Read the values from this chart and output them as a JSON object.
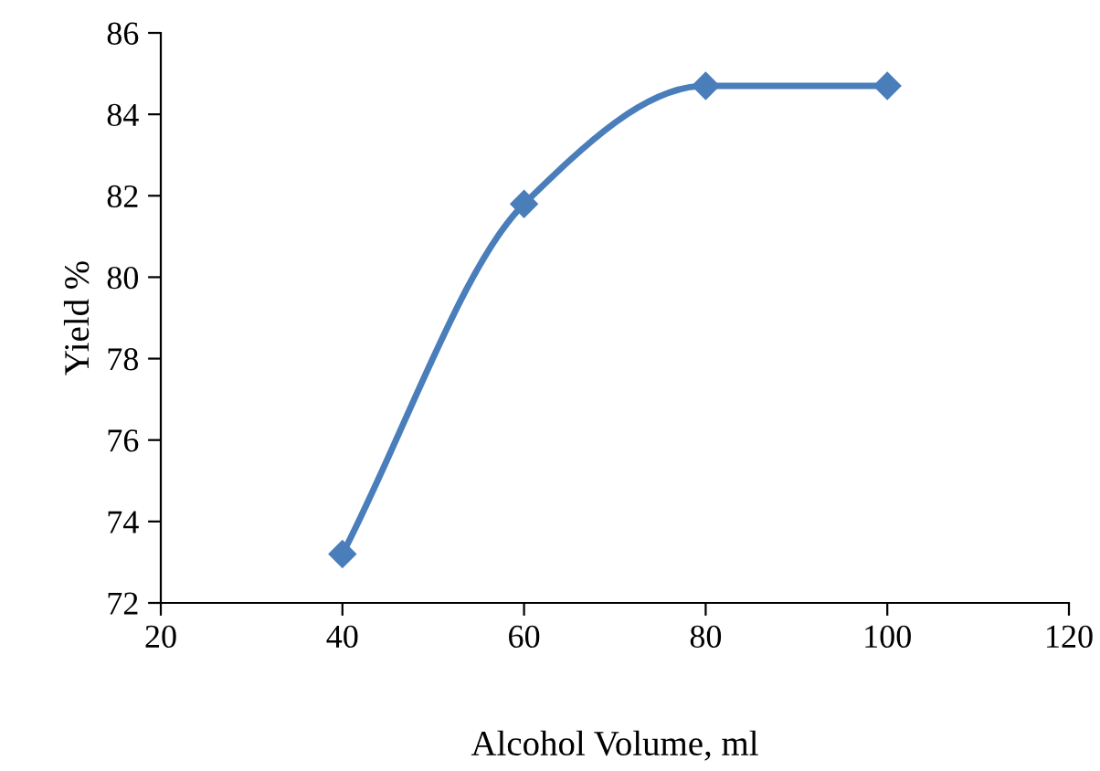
{
  "chart_data": {
    "type": "line",
    "xlabel": "Alcohol Volume, ml",
    "ylabel": "Yield %",
    "x": [
      40,
      60,
      80,
      100
    ],
    "series": [
      {
        "color": "#4a7ebb",
        "values": [
          73.2,
          81.8,
          84.7,
          84.7
        ]
      }
    ],
    "xlim": [
      20,
      120
    ],
    "xticks": [
      20,
      40,
      60,
      80,
      100,
      120
    ],
    "ylim": [
      72,
      86
    ],
    "yticks": [
      72,
      74,
      76,
      78,
      80,
      82,
      84,
      86
    ],
    "grid": false,
    "legend": false,
    "marker": "diamond",
    "line_style": "solid"
  }
}
